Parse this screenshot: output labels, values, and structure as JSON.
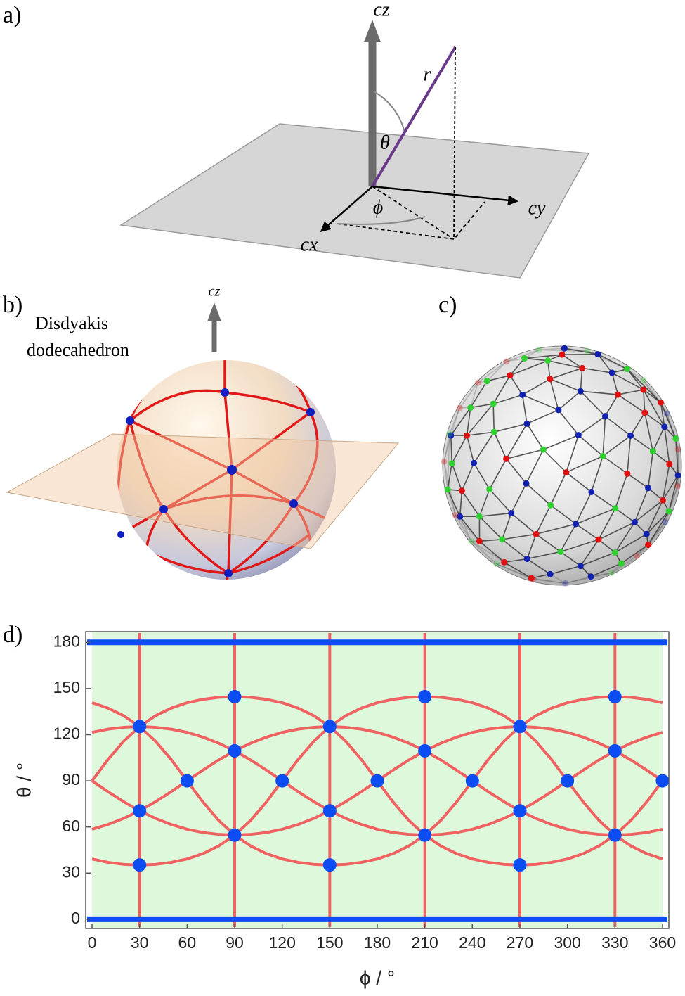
{
  "panels": {
    "a": {
      "label": "a)",
      "axes": [
        "cz",
        "cy",
        "cx"
      ],
      "symbols": [
        "r",
        "θ",
        "ϕ"
      ]
    },
    "b": {
      "label": "b)",
      "title": [
        "Disdyakis",
        "dodecahedron"
      ],
      "axis": "cz"
    },
    "c": {
      "label": "c)"
    },
    "d": {
      "label": "d)"
    }
  },
  "chart_data": {
    "type": "scatter",
    "xlabel": "ϕ / °",
    "ylabel": "θ / °",
    "xlim": [
      -4,
      364
    ],
    "ylim": [
      -6,
      187
    ],
    "xticks": [
      0,
      30,
      60,
      90,
      120,
      150,
      180,
      210,
      240,
      270,
      300,
      330,
      360
    ],
    "yticks": [
      0,
      30,
      60,
      90,
      120,
      150,
      180
    ],
    "background": "#ddf8da",
    "x": [
      0,
      10,
      20,
      30,
      40,
      50,
      60,
      70,
      80,
      90,
      100,
      110,
      120,
      130,
      140,
      150,
      160,
      170,
      180,
      190,
      200,
      210,
      220,
      230,
      240,
      250,
      260,
      270,
      280,
      290,
      300,
      310,
      320,
      330,
      340,
      350,
      360
    ],
    "curves": [
      {
        "color": "#f06262",
        "values": [
          39.2,
          37.0,
          35.7,
          35.3,
          35.7,
          37.0,
          39.2,
          42.7,
          47.7,
          54.7,
          64.2,
          76.2,
          90,
          103.8,
          115.8,
          125.3,
          132.3,
          137.3,
          140.8,
          143.0,
          144.3,
          144.7,
          144.3,
          143.0,
          140.8,
          137.3,
          132.3,
          125.3,
          115.8,
          103.8,
          90,
          76.2,
          64.2,
          54.7,
          47.7,
          42.7,
          39.2
        ]
      },
      {
        "color": "#f06262",
        "values": [
          140.8,
          137.3,
          132.3,
          125.3,
          115.8,
          103.8,
          90,
          76.2,
          64.2,
          54.7,
          47.7,
          42.7,
          39.2,
          37.0,
          35.7,
          35.3,
          35.7,
          37.0,
          39.2,
          42.7,
          47.7,
          54.7,
          64.2,
          76.2,
          90,
          103.8,
          115.8,
          125.3,
          132.3,
          137.3,
          140.8,
          143.0,
          144.3,
          144.7,
          144.3,
          143.0,
          140.8
        ]
      },
      {
        "color": "#f06262",
        "values": [
          90,
          103.8,
          115.8,
          125.3,
          132.3,
          137.3,
          140.8,
          143.0,
          144.3,
          144.7,
          144.3,
          143.0,
          140.8,
          137.3,
          132.3,
          125.3,
          115.8,
          103.8,
          90,
          76.2,
          64.2,
          54.7,
          47.7,
          42.7,
          39.2,
          37.0,
          35.7,
          35.3,
          35.7,
          37.0,
          39.2,
          42.7,
          47.7,
          54.7,
          64.2,
          76.2,
          90
        ]
      },
      {
        "color": "#f06262",
        "values": [
          90,
          83.0,
          76.4,
          70.5,
          65.6,
          61.6,
          58.5,
          56.4,
          55.2,
          54.7,
          55.2,
          56.4,
          58.5,
          61.6,
          65.6,
          70.5,
          76.4,
          83.0,
          90,
          97.0,
          103.6,
          109.5,
          114.4,
          118.4,
          121.5,
          123.6,
          124.8,
          125.3,
          124.8,
          123.6,
          121.5,
          118.4,
          114.4,
          109.5,
          103.6,
          97.0,
          90
        ]
      },
      {
        "color": "#f06262",
        "values": [
          121.5,
          123.6,
          124.8,
          125.3,
          124.8,
          123.6,
          121.5,
          118.4,
          114.4,
          109.5,
          103.6,
          97.0,
          90,
          83.0,
          76.4,
          70.5,
          65.6,
          61.6,
          58.5,
          56.4,
          55.2,
          54.7,
          55.2,
          56.4,
          58.5,
          61.6,
          65.6,
          70.5,
          76.4,
          83.0,
          90,
          97.0,
          103.6,
          109.5,
          114.4,
          118.4,
          121.5
        ]
      },
      {
        "color": "#f06262",
        "values": [
          58.5,
          61.6,
          65.6,
          70.5,
          76.4,
          83.0,
          90,
          97.0,
          103.6,
          109.5,
          114.4,
          118.4,
          121.5,
          123.6,
          124.8,
          125.3,
          124.8,
          123.6,
          121.5,
          118.4,
          114.4,
          109.5,
          103.6,
          97.0,
          90,
          83.0,
          76.4,
          70.5,
          65.6,
          61.6,
          58.5,
          56.4,
          55.2,
          54.7,
          55.2,
          56.4,
          58.5
        ]
      }
    ],
    "vertical_lines": {
      "color": "#f06262",
      "x": [
        30,
        90,
        150,
        210,
        270,
        330
      ]
    },
    "horizontal_lines": {
      "color": "#0b4df2",
      "values": [
        0,
        180
      ]
    },
    "points": {
      "color": "#0b4df2",
      "x": [
        30,
        30,
        30,
        60,
        90,
        90,
        90,
        120,
        150,
        150,
        150,
        180,
        210,
        210,
        210,
        240,
        270,
        270,
        270,
        300,
        330,
        330,
        330,
        360
      ],
      "values": [
        125.3,
        70.5,
        35.3,
        90,
        144.7,
        109.5,
        54.7,
        90,
        125.3,
        70.5,
        35.3,
        90,
        144.7,
        109.5,
        54.7,
        90,
        125.3,
        70.5,
        35.3,
        90,
        144.7,
        109.5,
        54.7,
        90
      ]
    }
  }
}
